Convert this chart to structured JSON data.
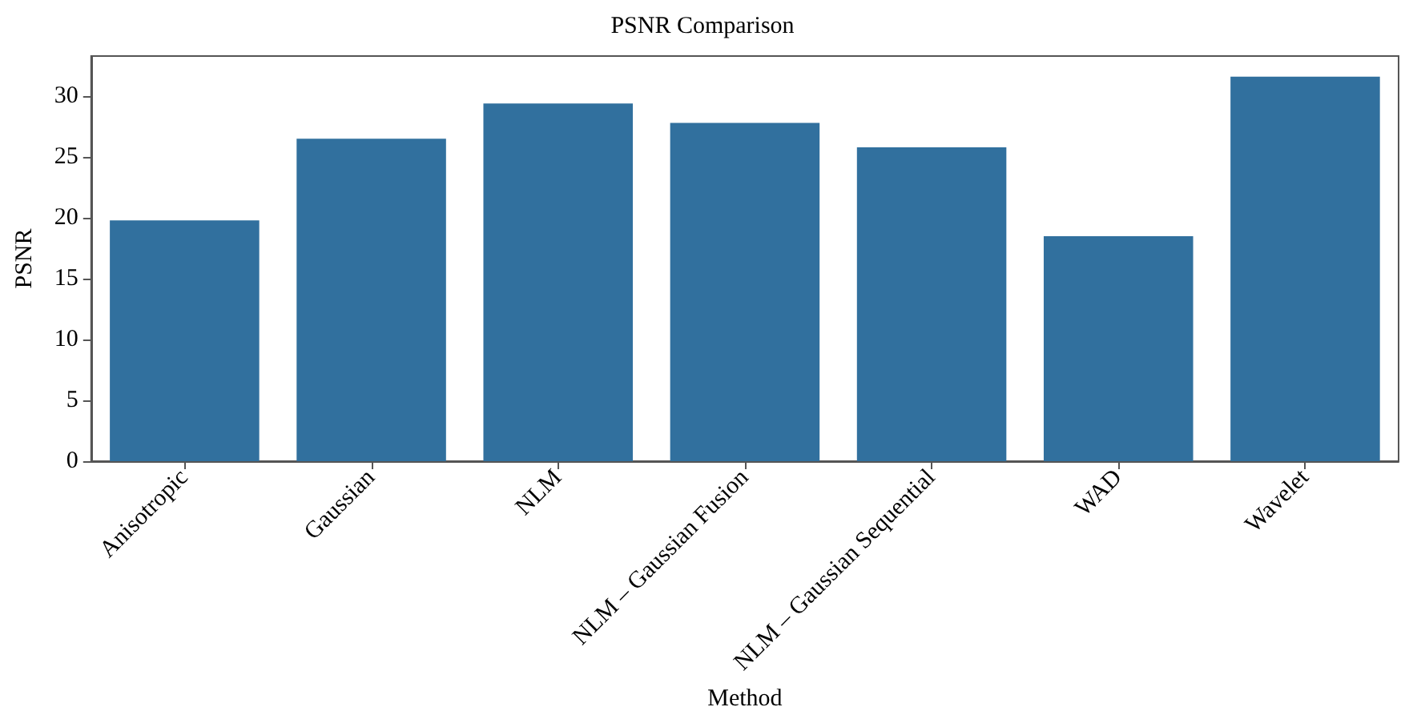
{
  "chart_data": {
    "type": "bar",
    "title": "PSNR Comparison",
    "xlabel": "Method",
    "ylabel": "PSNR",
    "categories": [
      "Anisotropic",
      "Gaussian",
      "NLM",
      "NLM – Gaussian Fusion",
      "NLM – Gaussian Sequential",
      "WAD",
      "Wavelet"
    ],
    "values": [
      19.8,
      26.5,
      29.4,
      27.8,
      25.8,
      18.5,
      31.6
    ],
    "color": "#31709e",
    "ylim": [
      0,
      33.3
    ],
    "yticks": [
      0,
      5,
      10,
      15,
      20,
      25,
      30
    ],
    "grid": false
  }
}
